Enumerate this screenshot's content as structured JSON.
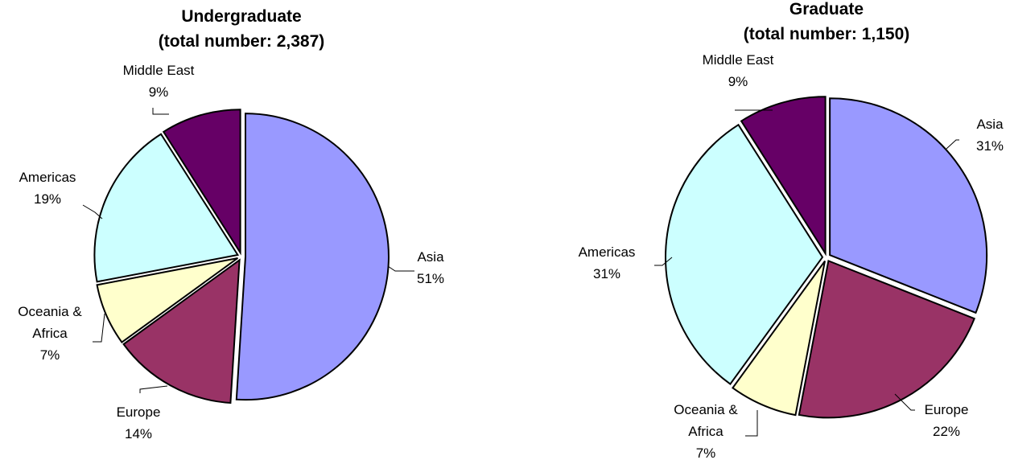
{
  "chart_data": [
    {
      "type": "pie",
      "title": "Undergraduate",
      "subtitle": "(total number: 2,387)",
      "slices": [
        {
          "name": "Asia",
          "value": 51,
          "label": "51%",
          "color": "#9999FF"
        },
        {
          "name": "Europe",
          "value": 14,
          "label": "14%",
          "color": "#993366"
        },
        {
          "name": "Oceania & Africa",
          "name_lines": [
            "Oceania &",
            "Africa"
          ],
          "value": 7,
          "label": "7%",
          "color": "#FFFFCC"
        },
        {
          "name": "Americas",
          "value": 19,
          "label": "19%",
          "color": "#CCFFFF"
        },
        {
          "name": "Middle East",
          "value": 9,
          "label": "9%",
          "color": "#660066"
        }
      ]
    },
    {
      "type": "pie",
      "title": "Graduate",
      "subtitle": "(total number: 1,150)",
      "slices": [
        {
          "name": "Asia",
          "value": 31,
          "label": "31%",
          "color": "#9999FF"
        },
        {
          "name": "Europe",
          "value": 22,
          "label": "22%",
          "color": "#993366"
        },
        {
          "name": "Oceania & Africa",
          "name_lines": [
            "Oceania &",
            "Africa"
          ],
          "value": 7,
          "label": "7%",
          "color": "#FFFFCC"
        },
        {
          "name": "Americas",
          "value": 31,
          "label": "31%",
          "color": "#CCFFFF"
        },
        {
          "name": "Middle East",
          "value": 9,
          "label": "9%",
          "color": "#660066"
        }
      ]
    }
  ]
}
